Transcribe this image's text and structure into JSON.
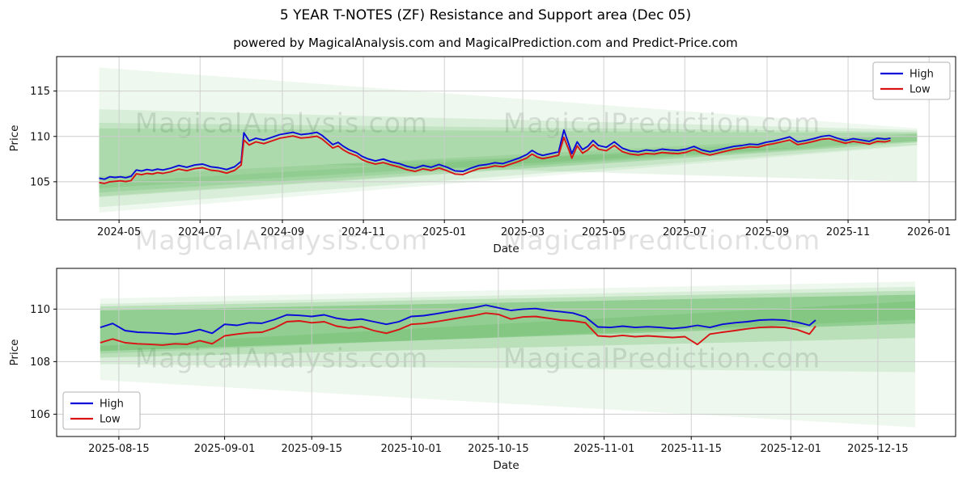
{
  "title": "5 YEAR T-NOTES (ZF) Resistance and Support area (Dec 05)",
  "subtitle": "powered by MagicalAnalysis.com and MagicalPrediction.com and Predict-Price.com",
  "watermarks": {
    "left": "MagicalAnalysis.com",
    "right": "MagicalPrediction.com"
  },
  "colors": {
    "high": "#0b0bd9",
    "low": "#d91414",
    "band": "#2ca02c",
    "grid": "#cbcbcb",
    "watermark": "#b9b9b9"
  },
  "chart_data": [
    {
      "name": "top-chart",
      "type": "line",
      "title": "",
      "xlabel": "Date",
      "ylabel": "Price",
      "x_unit": "days since axis start (2024-03-15)",
      "xlim": [
        0,
        677
      ],
      "ylim": [
        100.8,
        118.8
      ],
      "grid": true,
      "yticks": [
        105,
        110,
        115
      ],
      "xticks": [
        {
          "d": 47,
          "label": "2024-05"
        },
        {
          "d": 108,
          "label": "2024-07"
        },
        {
          "d": 170,
          "label": "2024-09"
        },
        {
          "d": 231,
          "label": "2024-11"
        },
        {
          "d": 292,
          "label": "2025-01"
        },
        {
          "d": 351,
          "label": "2025-03"
        },
        {
          "d": 412,
          "label": "2025-05"
        },
        {
          "d": 473,
          "label": "2025-07"
        },
        {
          "d": 535,
          "label": "2025-09"
        },
        {
          "d": 596,
          "label": "2025-11"
        },
        {
          "d": 657,
          "label": "2026-01"
        }
      ],
      "legend": {
        "pos": "top-right"
      },
      "series": [
        {
          "name": "High",
          "color": "#0b0bd9"
        },
        {
          "name": "Low",
          "color": "#d91414"
        }
      ],
      "points": [
        [
          32,
          105.4,
          104.92
        ],
        [
          36,
          105.28,
          104.82
        ],
        [
          40,
          105.55,
          105.0
        ],
        [
          44,
          105.48,
          105.05
        ],
        [
          48,
          105.55,
          105.1
        ],
        [
          52,
          105.45,
          105.02
        ],
        [
          56,
          105.6,
          105.12
        ],
        [
          60,
          106.3,
          105.88
        ],
        [
          64,
          106.18,
          105.78
        ],
        [
          68,
          106.35,
          105.92
        ],
        [
          72,
          106.25,
          105.85
        ],
        [
          76,
          106.4,
          106.0
        ],
        [
          80,
          106.3,
          105.92
        ],
        [
          86,
          106.5,
          106.1
        ],
        [
          92,
          106.8,
          106.4
        ],
        [
          98,
          106.6,
          106.22
        ],
        [
          104,
          106.85,
          106.45
        ],
        [
          110,
          106.95,
          106.55
        ],
        [
          116,
          106.65,
          106.28
        ],
        [
          122,
          106.55,
          106.18
        ],
        [
          128,
          106.35,
          105.95
        ],
        [
          134,
          106.65,
          106.25
        ],
        [
          139,
          107.25,
          106.85
        ],
        [
          141,
          110.4,
          109.6
        ],
        [
          145,
          109.5,
          109.05
        ],
        [
          150,
          109.8,
          109.4
        ],
        [
          156,
          109.6,
          109.2
        ],
        [
          162,
          109.9,
          109.5
        ],
        [
          168,
          110.2,
          109.8
        ],
        [
          174,
          110.35,
          109.95
        ],
        [
          178,
          110.45,
          110.05
        ],
        [
          184,
          110.2,
          109.82
        ],
        [
          190,
          110.3,
          109.9
        ],
        [
          196,
          110.45,
          110.02
        ],
        [
          200,
          110.1,
          109.7
        ],
        [
          204,
          109.6,
          109.2
        ],
        [
          208,
          109.1,
          108.72
        ],
        [
          212,
          109.35,
          108.95
        ],
        [
          216,
          108.9,
          108.5
        ],
        [
          220,
          108.55,
          108.18
        ],
        [
          226,
          108.2,
          107.85
        ],
        [
          230,
          107.8,
          107.45
        ],
        [
          234,
          107.55,
          107.2
        ],
        [
          240,
          107.3,
          106.95
        ],
        [
          246,
          107.5,
          107.12
        ],
        [
          252,
          107.2,
          106.85
        ],
        [
          258,
          107.0,
          106.62
        ],
        [
          264,
          106.7,
          106.32
        ],
        [
          270,
          106.5,
          106.15
        ],
        [
          276,
          106.8,
          106.42
        ],
        [
          282,
          106.6,
          106.25
        ],
        [
          288,
          106.9,
          106.52
        ],
        [
          294,
          106.6,
          106.22
        ],
        [
          300,
          106.2,
          105.85
        ],
        [
          306,
          106.15,
          105.8
        ],
        [
          312,
          106.5,
          106.15
        ],
        [
          318,
          106.8,
          106.45
        ],
        [
          324,
          106.9,
          106.55
        ],
        [
          330,
          107.1,
          106.75
        ],
        [
          336,
          107.0,
          106.65
        ],
        [
          342,
          107.3,
          106.95
        ],
        [
          348,
          107.6,
          107.25
        ],
        [
          354,
          108.0,
          107.62
        ],
        [
          358,
          108.45,
          108.05
        ],
        [
          362,
          108.1,
          107.72
        ],
        [
          366,
          107.9,
          107.55
        ],
        [
          372,
          108.1,
          107.72
        ],
        [
          378,
          108.3,
          107.92
        ],
        [
          382,
          110.7,
          109.9
        ],
        [
          386,
          109.0,
          108.4
        ],
        [
          388,
          108.1,
          107.6
        ],
        [
          392,
          109.4,
          108.95
        ],
        [
          396,
          108.55,
          108.15
        ],
        [
          400,
          108.9,
          108.5
        ],
        [
          404,
          109.55,
          109.1
        ],
        [
          408,
          109.0,
          108.6
        ],
        [
          414,
          108.8,
          108.42
        ],
        [
          420,
          109.4,
          109.0
        ],
        [
          426,
          108.7,
          108.32
        ],
        [
          432,
          108.4,
          108.05
        ],
        [
          438,
          108.3,
          107.95
        ],
        [
          444,
          108.5,
          108.12
        ],
        [
          450,
          108.4,
          108.05
        ],
        [
          456,
          108.6,
          108.22
        ],
        [
          462,
          108.5,
          108.15
        ],
        [
          468,
          108.45,
          108.1
        ],
        [
          474,
          108.6,
          108.25
        ],
        [
          480,
          108.9,
          108.55
        ],
        [
          486,
          108.5,
          108.15
        ],
        [
          492,
          108.3,
          107.95
        ],
        [
          498,
          108.5,
          108.15
        ],
        [
          504,
          108.7,
          108.38
        ],
        [
          510,
          108.9,
          108.58
        ],
        [
          516,
          109.0,
          108.7
        ],
        [
          522,
          109.15,
          108.85
        ],
        [
          528,
          109.1,
          108.8
        ],
        [
          534,
          109.35,
          109.05
        ],
        [
          540,
          109.5,
          109.2
        ],
        [
          546,
          109.7,
          109.4
        ],
        [
          552,
          109.95,
          109.6
        ],
        [
          558,
          109.4,
          109.1
        ],
        [
          564,
          109.55,
          109.25
        ],
        [
          570,
          109.75,
          109.45
        ],
        [
          576,
          110.0,
          109.68
        ],
        [
          582,
          110.1,
          109.75
        ],
        [
          588,
          109.8,
          109.5
        ],
        [
          594,
          109.55,
          109.25
        ],
        [
          600,
          109.75,
          109.45
        ],
        [
          606,
          109.6,
          109.3
        ],
        [
          612,
          109.45,
          109.15
        ],
        [
          618,
          109.8,
          109.45
        ],
        [
          624,
          109.7,
          109.4
        ],
        [
          628,
          109.8,
          109.55
        ]
      ],
      "bands": [
        {
          "alpha": 0.08,
          "pts": [
            [
              32,
              117.6
            ],
            [
              648,
              110.9
            ],
            [
              648,
              109.0
            ],
            [
              32,
              101.6
            ]
          ]
        },
        {
          "alpha": 0.1,
          "pts": [
            [
              32,
              113.0
            ],
            [
              648,
              110.7
            ],
            [
              648,
              109.1
            ],
            [
              32,
              102.2
            ]
          ]
        },
        {
          "alpha": 0.12,
          "pts": [
            [
              32,
              111.5
            ],
            [
              648,
              110.5
            ],
            [
              648,
              109.3
            ],
            [
              32,
              103.3
            ]
          ]
        },
        {
          "alpha": 0.15,
          "pts": [
            [
              32,
              110.9
            ],
            [
              648,
              110.35
            ],
            [
              648,
              109.45
            ],
            [
              32,
              103.8
            ]
          ]
        },
        {
          "alpha": 0.12,
          "pts": [
            [
              32,
              105.6
            ],
            [
              648,
              110.3
            ],
            [
              648,
              109.5
            ],
            [
              32,
              104.3
            ]
          ]
        },
        {
          "alpha": 0.1,
          "pts": [
            [
              32,
              104.9
            ],
            [
              648,
              110.15
            ],
            [
              648,
              109.35
            ],
            [
              32,
              103.4
            ]
          ]
        },
        {
          "alpha": 0.1,
          "pts": [
            [
              200,
              106.9
            ],
            [
              648,
              109.2
            ],
            [
              648,
              105.0
            ]
          ]
        }
      ],
      "plot": {
        "l": 70,
        "t": 70,
        "r": 1181,
        "b": 272
      }
    },
    {
      "name": "bottom-chart",
      "type": "line",
      "title": "",
      "xlabel": "Date",
      "ylabel": "Price",
      "x_unit": "days since axis start (2025-08-05)",
      "xlim": [
        0,
        144.5
      ],
      "ylim": [
        105.15,
        111.55
      ],
      "grid": true,
      "yticks": [
        106,
        108,
        110
      ],
      "xticks": [
        {
          "d": 10,
          "label": "2025-08-15"
        },
        {
          "d": 27,
          "label": "2025-09-01"
        },
        {
          "d": 41,
          "label": "2025-09-15"
        },
        {
          "d": 57,
          "label": "2025-10-01"
        },
        {
          "d": 71,
          "label": "2025-10-15"
        },
        {
          "d": 88,
          "label": "2025-11-01"
        },
        {
          "d": 102,
          "label": "2025-11-15"
        },
        {
          "d": 118,
          "label": "2025-12-01"
        },
        {
          "d": 132,
          "label": "2025-12-15"
        }
      ],
      "legend": {
        "pos": "bottom-left"
      },
      "series": [
        {
          "name": "High",
          "color": "#0b0bd9"
        },
        {
          "name": "Low",
          "color": "#d91414"
        }
      ],
      "points": [
        [
          7,
          109.3,
          108.72
        ],
        [
          9,
          109.45,
          108.86
        ],
        [
          11,
          109.18,
          108.72
        ],
        [
          13,
          109.12,
          108.68
        ],
        [
          15,
          109.1,
          108.66
        ],
        [
          17,
          109.08,
          108.63
        ],
        [
          19,
          109.05,
          108.68
        ],
        [
          21,
          109.1,
          108.66
        ],
        [
          23,
          109.22,
          108.8
        ],
        [
          25,
          109.08,
          108.68
        ],
        [
          27,
          109.42,
          108.98
        ],
        [
          29,
          109.38,
          109.05
        ],
        [
          31,
          109.48,
          109.1
        ],
        [
          33,
          109.46,
          109.12
        ],
        [
          35,
          109.6,
          109.28
        ],
        [
          37,
          109.78,
          109.52
        ],
        [
          39,
          109.76,
          109.55
        ],
        [
          41,
          109.72,
          109.48
        ],
        [
          43,
          109.78,
          109.52
        ],
        [
          45,
          109.65,
          109.35
        ],
        [
          47,
          109.58,
          109.28
        ],
        [
          49,
          109.62,
          109.33
        ],
        [
          51,
          109.52,
          109.18
        ],
        [
          53,
          109.42,
          109.08
        ],
        [
          55,
          109.52,
          109.22
        ],
        [
          57,
          109.72,
          109.42
        ],
        [
          59,
          109.75,
          109.45
        ],
        [
          61,
          109.82,
          109.52
        ],
        [
          63,
          109.9,
          109.6
        ],
        [
          65,
          109.98,
          109.68
        ],
        [
          67,
          110.05,
          109.75
        ],
        [
          69,
          110.15,
          109.85
        ],
        [
          71,
          110.05,
          109.8
        ],
        [
          73,
          109.95,
          109.62
        ],
        [
          75,
          110.0,
          109.7
        ],
        [
          77,
          110.02,
          109.72
        ],
        [
          79,
          109.95,
          109.65
        ],
        [
          81,
          109.9,
          109.58
        ],
        [
          83,
          109.85,
          109.55
        ],
        [
          85,
          109.7,
          109.48
        ],
        [
          87,
          109.32,
          108.98
        ],
        [
          89,
          109.3,
          108.95
        ],
        [
          91,
          109.35,
          109.0
        ],
        [
          93,
          109.3,
          108.95
        ],
        [
          95,
          109.33,
          108.98
        ],
        [
          97,
          109.3,
          108.95
        ],
        [
          99,
          109.26,
          108.92
        ],
        [
          101,
          109.3,
          108.95
        ],
        [
          103,
          109.38,
          108.65
        ],
        [
          105,
          109.3,
          109.05
        ],
        [
          107,
          109.42,
          109.12
        ],
        [
          109,
          109.48,
          109.18
        ],
        [
          111,
          109.52,
          109.25
        ],
        [
          113,
          109.58,
          109.3
        ],
        [
          115,
          109.6,
          109.32
        ],
        [
          117,
          109.58,
          109.3
        ],
        [
          119,
          109.5,
          109.22
        ],
        [
          121,
          109.38,
          109.05
        ],
        [
          122,
          109.58,
          109.35
        ]
      ],
      "bands": [
        {
          "alpha": 0.08,
          "pts": [
            [
              7,
              110.4
            ],
            [
              138,
              111.05
            ],
            [
              138,
              105.5
            ],
            [
              7,
              107.3
            ]
          ]
        },
        {
          "alpha": 0.1,
          "pts": [
            [
              7,
              110.2
            ],
            [
              138,
              110.85
            ],
            [
              138,
              107.6
            ],
            [
              7,
              107.9
            ]
          ]
        },
        {
          "alpha": 0.18,
          "pts": [
            [
              7,
              110.1
            ],
            [
              138,
              110.7
            ],
            [
              138,
              108.9
            ],
            [
              7,
              108.15
            ]
          ]
        },
        {
          "alpha": 0.28,
          "pts": [
            [
              7,
              109.95
            ],
            [
              138,
              110.55
            ],
            [
              138,
              109.45
            ],
            [
              7,
              108.4
            ]
          ]
        },
        {
          "alpha": 0.15,
          "pts": [
            [
              7,
              108.6
            ],
            [
              138,
              110.3
            ],
            [
              138,
              109.6
            ],
            [
              7,
              108.3
            ]
          ]
        }
      ],
      "plot": {
        "l": 70,
        "t": 332,
        "r": 1181,
        "b": 540
      }
    }
  ]
}
